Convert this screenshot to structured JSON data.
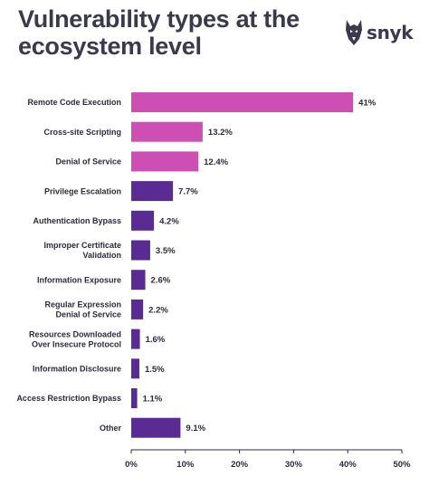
{
  "header": {
    "title_line1": "Vulnerability types at the",
    "title_line2": "ecosystem level"
  },
  "logo": {
    "text": "snyk",
    "icon": "snyk-dog-icon"
  },
  "colors": {
    "highlight": "#cd4fb3",
    "base": "#5b2b94",
    "axis": "#2b2b3c"
  },
  "chart_data": {
    "type": "bar",
    "orientation": "horizontal",
    "categories": [
      [
        "Remote Code Execution"
      ],
      [
        "Cross-site Scripting"
      ],
      [
        "Denial of Service"
      ],
      [
        "Privilege Escalation"
      ],
      [
        "Authentication Bypass"
      ],
      [
        "Improper Certificate",
        "Validation"
      ],
      [
        "Information Exposure"
      ],
      [
        "Regular Expression",
        "Denial of Service"
      ],
      [
        "Resources Downloaded",
        "Over Insecure Protocol"
      ],
      [
        "Information Disclosure"
      ],
      [
        "Access Restriction Bypass"
      ],
      [
        "Other"
      ]
    ],
    "values": [
      41,
      13.2,
      12.4,
      7.7,
      4.2,
      3.5,
      2.6,
      2.2,
      1.6,
      1.5,
      1.1,
      9.1
    ],
    "value_labels": [
      "41%",
      "13.2%",
      "12.4%",
      "7.7%",
      "4.2%",
      "3.5%",
      "2.6%",
      "2.2%",
      "1.6%",
      "1.5%",
      "1.1%",
      "9.1%"
    ],
    "highlighted": [
      true,
      true,
      true,
      false,
      false,
      false,
      false,
      false,
      false,
      false,
      false,
      false
    ],
    "xlim": [
      0,
      50
    ],
    "xticks": [
      0,
      10,
      20,
      30,
      40,
      50
    ],
    "xtick_labels": [
      "0%",
      "10%",
      "20%",
      "30%",
      "40%",
      "50%"
    ],
    "grid": false
  }
}
